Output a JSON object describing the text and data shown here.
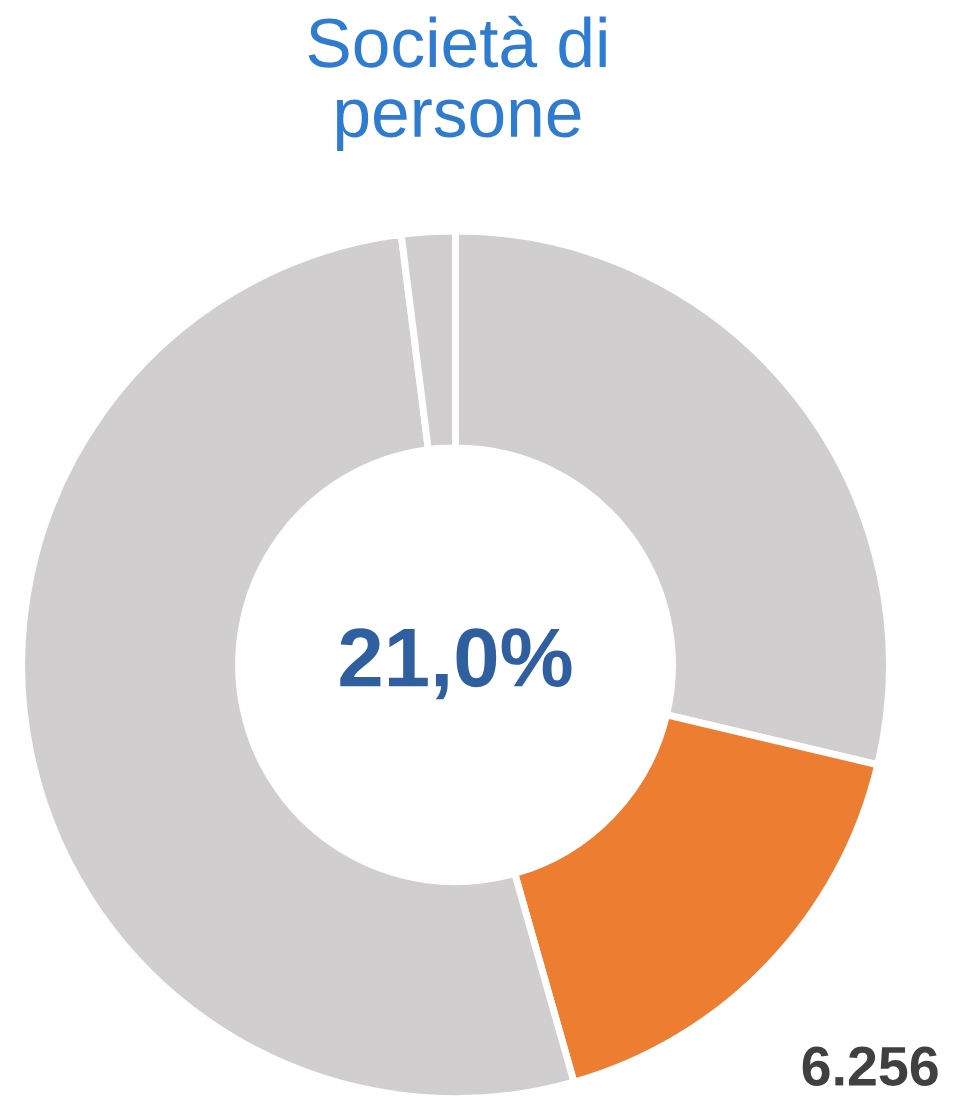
{
  "chart_data": {
    "type": "donut",
    "title": "Società di\npersone",
    "categories": [
      null,
      null,
      null,
      null
    ],
    "values": [
      28.7,
      16.9,
      52.4,
      2.0
    ],
    "colors": [
      "#d0cece",
      "#ed7d31",
      "#d0cece",
      "#d0cece"
    ],
    "annotations": [
      "21,0%",
      "6.256"
    ],
    "legend": false
  }
}
